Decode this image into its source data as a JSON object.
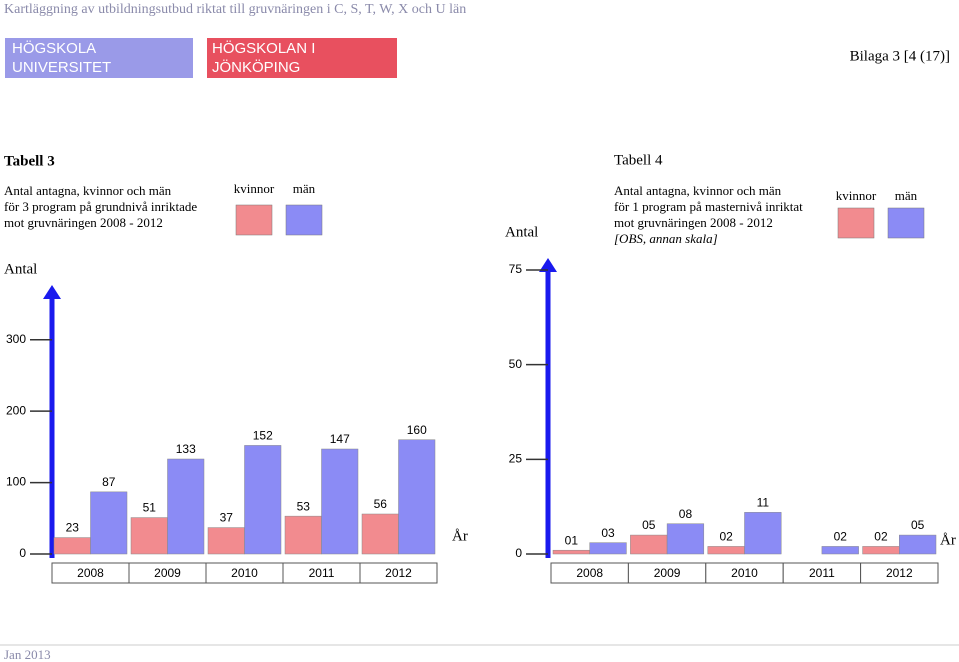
{
  "header": {
    "running_title": "Kartläggning av utbildningsutbud riktat till gruvnäringen i C, S, T, W, X och U län",
    "logo_left": [
      "HÖGSKOLA",
      "UNIVERSITET"
    ],
    "logo_right": [
      "HÖGSKOLAN I",
      "JÖNKÖPING"
    ],
    "page_ref": "Bilaga 3 [4 (17)]"
  },
  "footer": "Jan 2013",
  "chart_data": [
    {
      "type": "bar",
      "title": "Tabell 3",
      "subtitle": [
        "Antal antagna, kvinnor och män",
        "för 3 program på grundnivå inriktade",
        "mot gruvnäringen 2008 - 2012"
      ],
      "y_label": "Antal",
      "x_label": "År",
      "categories": [
        "2008",
        "2009",
        "2010",
        "2011",
        "2012"
      ],
      "series": [
        {
          "name": "kvinnor",
          "color": "#f28b8f",
          "values": [
            23,
            51,
            37,
            53,
            56
          ]
        },
        {
          "name": "män",
          "color": "#8b8bf5",
          "values": [
            87,
            133,
            152,
            147,
            160
          ]
        }
      ],
      "ylim": [
        0,
        350
      ],
      "yticks": [
        0,
        100,
        200,
        300
      ]
    },
    {
      "type": "bar",
      "title": "Tabell 4",
      "subtitle": [
        "Antal antagna, kvinnor och män",
        "för 1 program på masternivå inriktat",
        "mot gruvnäringen 2008 - 2012"
      ],
      "annotation": "[OBS, annan skala]",
      "y_label": "Antal",
      "x_label": "År",
      "categories": [
        "2008",
        "2009",
        "2010",
        "2011",
        "2012"
      ],
      "series": [
        {
          "name": "kvinnor",
          "color": "#f28b8f",
          "values": [
            1,
            5,
            2,
            null,
            2
          ],
          "value_labels": [
            "01",
            "05",
            "02",
            null,
            "02"
          ]
        },
        {
          "name": "män",
          "color": "#8b8bf5",
          "values": [
            3,
            8,
            11,
            2,
            5
          ],
          "value_labels": [
            "03",
            "08",
            "11",
            "02",
            "05"
          ]
        }
      ],
      "ylim": [
        0,
        75
      ],
      "yticks": [
        0,
        25,
        50,
        75
      ]
    }
  ]
}
